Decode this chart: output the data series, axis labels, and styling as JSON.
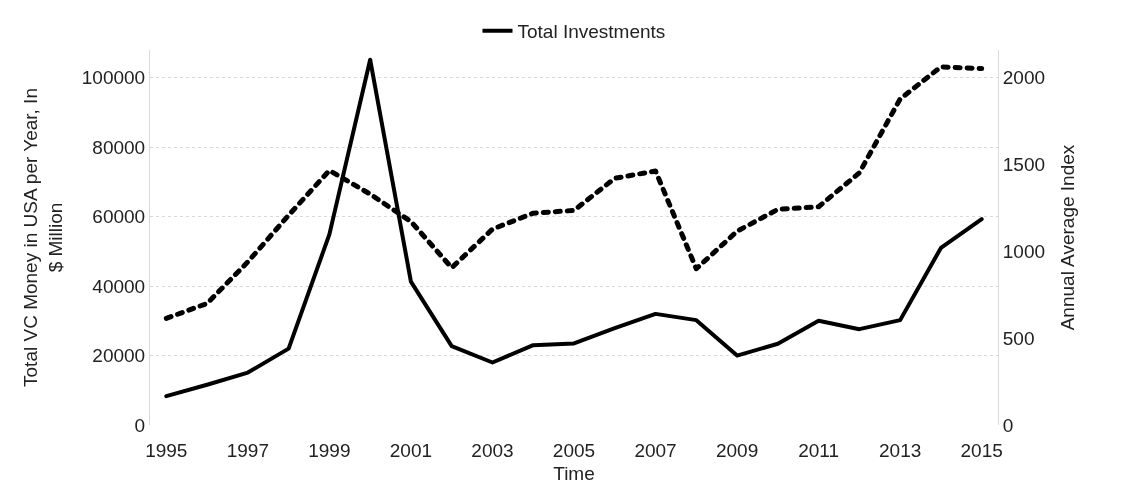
{
  "chart_data": {
    "type": "line",
    "xlabel": "Time",
    "ylabel": "Total VC Money in USA per Year, In $ Million",
    "y2label": "Annual Average Index",
    "x": [
      1995,
      1996,
      1997,
      1998,
      1999,
      2000,
      2001,
      2002,
      2003,
      2004,
      2005,
      2006,
      2007,
      2008,
      2009,
      2010,
      2011,
      2012,
      2013,
      2014,
      2015
    ],
    "series": [
      {
        "name": "Total Investments",
        "color": "#000000",
        "line_style": "solid",
        "values": [
          8300,
          11600,
          15100,
          22000,
          54900,
          105200,
          41300,
          22700,
          18000,
          23000,
          23500,
          27900,
          32000,
          30200,
          20000,
          23400,
          30000,
          27600,
          30200,
          51000,
          59300
        ]
      },
      {
        "color": "#000000",
        "line_style": "dotted",
        "axis": "y2",
        "values": [
          614,
          700,
          940,
          1208,
          1466,
          1330,
          1172,
          906,
          1128,
          1220,
          1236,
          1421,
          1463,
          900,
          1116,
          1242,
          1257,
          1453,
          1878,
          2063,
          2053
        ]
      }
    ],
    "xlim": [
      1994.6,
      2015.4
    ],
    "xticks": [
      1995,
      1997,
      1999,
      2001,
      2003,
      2005,
      2007,
      2009,
      2011,
      2013,
      2015
    ],
    "ylim": [
      0,
      108000
    ],
    "yticks": [
      0,
      20000,
      40000,
      60000,
      80000,
      100000
    ],
    "y2lim": [
      0,
      2160
    ],
    "y2ticks": [
      0,
      500,
      1000,
      1500,
      2000
    ],
    "grid": "y",
    "legend": "top",
    "marker": "none"
  }
}
